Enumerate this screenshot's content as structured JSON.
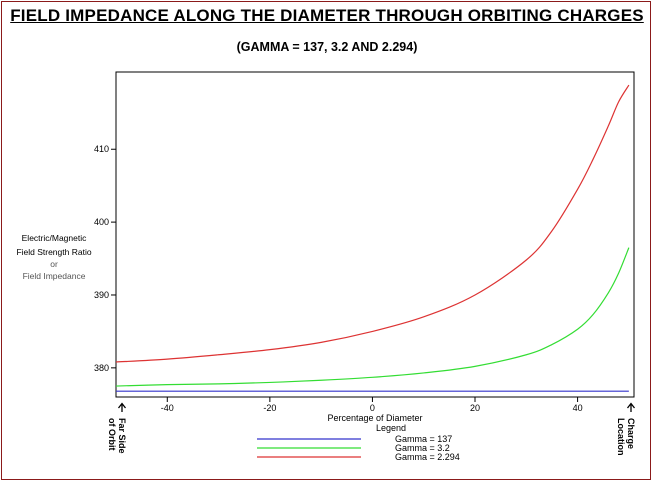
{
  "title": "FIELD IMPEDANCE ALONG THE DIAMETER THROUGH ORBITING CHARGES",
  "subtitle": "(GAMMA = 137, 3.2 AND 2.294)",
  "ylabel_lines": [
    "Electric/Magnetic",
    "Field Strength Ratio",
    "or",
    "Field Impedance"
  ],
  "left_note": [
    "Far Side",
    "of Orbit"
  ],
  "right_note": [
    "Charge",
    "Location"
  ],
  "legend_title": "Legend",
  "chart_data": {
    "type": "line",
    "title": "FIELD IMPEDANCE ALONG THE DIAMETER THROUGH ORBITING CHARGES",
    "subtitle": "(GAMMA = 137, 3.2 AND 2.294)",
    "xlabel": "Percentage of Diameter",
    "ylabel": "Electric/Magnetic Field Strength Ratio or Field Impedance",
    "xlim": [
      -50,
      51
    ],
    "ylim": [
      376,
      420.6
    ],
    "xticks": [
      -40,
      -20,
      0,
      20,
      40
    ],
    "yticks": [
      380,
      390,
      400,
      410
    ],
    "grid": false,
    "legend_position": "bottom",
    "series": [
      {
        "name": "Gamma = 137",
        "color": "#3333cc",
        "x": [
          -50,
          -40,
          -30,
          -20,
          -10,
          0,
          10,
          20,
          30,
          40,
          45,
          50
        ],
        "y": [
          376.8,
          376.8,
          376.8,
          376.8,
          376.8,
          376.8,
          376.8,
          376.8,
          376.8,
          376.8,
          376.8,
          376.8
        ]
      },
      {
        "name": "Gamma = 3.2",
        "color": "#33dd33",
        "x": [
          -50,
          -40,
          -30,
          -20,
          -10,
          0,
          10,
          20,
          30,
          35,
          40,
          43,
          46,
          48,
          50
        ],
        "y": [
          377.5,
          377.7,
          377.8,
          378.0,
          378.3,
          378.7,
          379.3,
          380.2,
          381.8,
          383.2,
          385.3,
          387.3,
          390.3,
          393.0,
          396.5
        ]
      },
      {
        "name": "Gamma = 2.294",
        "color": "#dd3333",
        "x": [
          -50,
          -40,
          -30,
          -20,
          -10,
          0,
          10,
          20,
          30,
          35,
          40,
          43,
          46,
          48,
          50
        ],
        "y": [
          380.8,
          381.2,
          381.8,
          382.5,
          383.5,
          385.0,
          387.0,
          390.0,
          394.8,
          398.8,
          404.5,
          408.6,
          413.2,
          416.5,
          418.8
        ]
      }
    ]
  }
}
